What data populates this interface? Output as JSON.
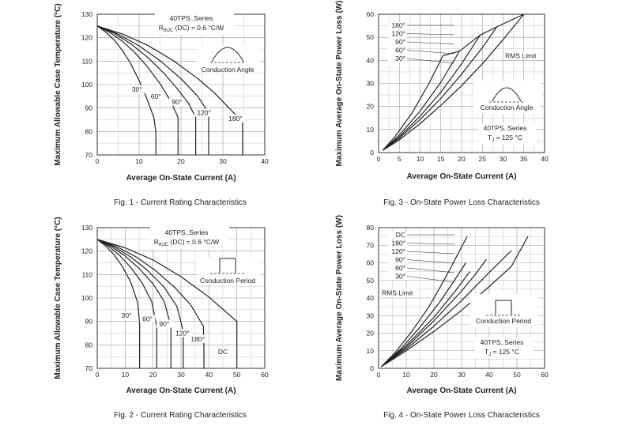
{
  "chart_data": [
    {
      "id": "fig1",
      "type": "line",
      "caption": "Fig. 1 - Current Rating Characteristics",
      "xlabel": "Average On-State Current (A)",
      "ylabel": "Maximum Allowable Case Temperature (°C)",
      "xlim": [
        0,
        40
      ],
      "ylim": [
        70,
        130
      ],
      "xticks": [
        0,
        10,
        20,
        30,
        40
      ],
      "yticks": [
        70,
        80,
        90,
        100,
        110,
        120,
        130
      ],
      "grid": true,
      "notes": [
        "40TPS..Series",
        "R",
        "thJC",
        " (DC) = 0.6 °C/W",
        "Conduction Angle"
      ],
      "series": [
        {
          "name": "30°",
          "x": [
            0,
            2,
            4,
            6,
            8,
            10,
            12,
            13.5,
            14,
            14,
            14
          ],
          "y": [
            125,
            122.4,
            119.1,
            114.6,
            108.9,
            101.8,
            93.3,
            86,
            80,
            75,
            70
          ]
        },
        {
          "name": "60°",
          "x": [
            0,
            3,
            6,
            9,
            12,
            15,
            17.5,
            19.3,
            19.3,
            19.3
          ],
          "y": [
            125,
            122.2,
            118.5,
            113.6,
            107.6,
            100.4,
            93,
            86,
            78,
            70
          ]
        },
        {
          "name": "90°",
          "x": [
            0,
            4,
            8,
            12,
            16,
            19,
            21.8,
            23.5,
            23.5,
            23.5
          ],
          "y": [
            125,
            121.9,
            117.4,
            111.7,
            104.7,
            98.5,
            92,
            86,
            78,
            70
          ]
        },
        {
          "name": "120°",
          "x": [
            0,
            5,
            10,
            15,
            20,
            24,
            26.6,
            26.6,
            26.6
          ],
          "y": [
            125,
            121.5,
            116.5,
            110.2,
            102.5,
            95,
            88,
            78,
            70
          ]
        },
        {
          "name": "180°",
          "x": [
            0,
            6,
            12,
            18,
            24,
            28,
            31.5,
            34.7,
            34.7,
            34.7
          ],
          "y": [
            125,
            121.6,
            116.8,
            110.4,
            102.6,
            96.4,
            90,
            84,
            77,
            70
          ]
        }
      ],
      "curve_labels": [
        {
          "text": "30°",
          "x": 9.5,
          "y": 97
        },
        {
          "text": "60°",
          "x": 14,
          "y": 94
        },
        {
          "text": "90°",
          "x": 19,
          "y": 91.5
        },
        {
          "text": "120°",
          "x": 25.5,
          "y": 87
        },
        {
          "text": "180°",
          "x": 33,
          "y": 84.5
        }
      ]
    },
    {
      "id": "fig2",
      "type": "line",
      "caption": "Fig. 2 - Current Rating Characteristics",
      "xlabel": "Average On-State Current (A)",
      "ylabel": "Maximum Allowable Case Temperature (°C)",
      "xlim": [
        0,
        60
      ],
      "ylim": [
        70,
        130
      ],
      "xticks": [
        0,
        10,
        20,
        30,
        40,
        50,
        60
      ],
      "yticks": [
        70,
        80,
        90,
        100,
        110,
        120,
        130
      ],
      "grid": true,
      "notes": [
        "40TPS..Series",
        "R",
        "thJC",
        " (DC) = 0.6 °C/W",
        "Conduction Period"
      ],
      "series": [
        {
          "name": "30°",
          "x": [
            0,
            3,
            6,
            9,
            12,
            14.5,
            15.2,
            15.2,
            15.2
          ],
          "y": [
            125,
            122.2,
            118.5,
            113.4,
            106.8,
            98,
            89,
            80,
            70
          ]
        },
        {
          "name": "60°",
          "x": [
            0,
            4,
            8,
            12,
            16,
            19.5,
            21.3,
            21.3,
            21.3
          ],
          "y": [
            125,
            122.1,
            118.2,
            113,
            106.6,
            98.5,
            88,
            80,
            70
          ]
        },
        {
          "name": "90°",
          "x": [
            0,
            5,
            10,
            15,
            20,
            24,
            26.4,
            26.4
          ],
          "y": [
            125,
            122,
            117.9,
            112.6,
            106,
            98.5,
            88,
            70
          ]
        },
        {
          "name": "120°",
          "x": [
            0,
            6,
            12,
            18,
            24,
            28.5,
            30.8,
            30.8
          ],
          "y": [
            125,
            121.9,
            117.5,
            111.8,
            104.6,
            96.5,
            86,
            70
          ]
        },
        {
          "name": "180°",
          "x": [
            0,
            7,
            14,
            21,
            28,
            33.5,
            38,
            38.2,
            38.2
          ],
          "y": [
            125,
            121.9,
            117.5,
            111.6,
            104.2,
            97,
            88,
            79,
            70
          ]
        },
        {
          "name": "DC",
          "x": [
            0,
            10,
            20,
            30,
            40,
            50,
            50,
            50
          ],
          "y": [
            125,
            121.4,
            116.2,
            109.1,
            100.4,
            90,
            80,
            70
          ]
        }
      ],
      "curve_labels": [
        {
          "text": "30°",
          "x": 10.5,
          "y": 91.5
        },
        {
          "text": "60°",
          "x": 18,
          "y": 90
        },
        {
          "text": "90°",
          "x": 24,
          "y": 88
        },
        {
          "text": "120°",
          "x": 30.5,
          "y": 84
        },
        {
          "text": "180°",
          "x": 36,
          "y": 81.5
        },
        {
          "text": "DC",
          "x": 45,
          "y": 76
        }
      ]
    },
    {
      "id": "fig3",
      "type": "line",
      "caption": "Fig. 3 - On-State Power Loss Characteristics",
      "xlabel": "Average On-State Current (A)",
      "ylabel": "Maximum Average On-State Power Loss (W)",
      "xlim": [
        0,
        40
      ],
      "ylim": [
        0,
        60
      ],
      "xticks": [
        0,
        5,
        10,
        15,
        20,
        25,
        30,
        35,
        40
      ],
      "yticks": [
        0,
        10,
        20,
        30,
        40,
        50,
        60
      ],
      "grid": true,
      "legend_labels": [
        "180°",
        "120°",
        "90°",
        "60°",
        "30°"
      ],
      "notes": [
        "RMS Limit",
        "Conduction Angle",
        "40TPS..Series",
        "T",
        "J",
        " = 125 °C"
      ],
      "series": [
        {
          "name": "180°",
          "x": [
            1,
            5,
            10,
            15,
            20,
            25,
            30,
            35
          ],
          "y": [
            1,
            5.5,
            12.5,
            20.5,
            29,
            38.5,
            49,
            60
          ]
        },
        {
          "name": "120°",
          "x": [
            1,
            5,
            10,
            15,
            20,
            25,
            28.5
          ],
          "y": [
            1,
            6.2,
            14.3,
            23.5,
            34,
            45.5,
            54.5
          ]
        },
        {
          "name": "90°",
          "x": [
            1,
            5,
            10,
            15,
            20,
            24.5
          ],
          "y": [
            1,
            6.8,
            15.8,
            26.2,
            38.5,
            51
          ]
        },
        {
          "name": "60°",
          "x": [
            1,
            5,
            10,
            15,
            19.5
          ],
          "y": [
            1,
            7.6,
            18,
            30.5,
            44
          ]
        },
        {
          "name": "30°",
          "x": [
            1,
            4,
            8,
            12,
            15.5
          ],
          "y": [
            1,
            7,
            17,
            29.5,
            42
          ]
        },
        {
          "name": "RMS Limit",
          "x": [
            15.5,
            19.5,
            24.5,
            28.5,
            35
          ],
          "y": [
            42,
            44,
            51,
            54.5,
            60
          ]
        }
      ]
    },
    {
      "id": "fig4",
      "type": "line",
      "caption": "Fig. 4 - On-State Power Loss Characteristics",
      "xlabel": "Average On-State Current (A)",
      "ylabel": "Maximum Average On-State Power Loss (W)",
      "xlim": [
        0,
        60
      ],
      "ylim": [
        0,
        80
      ],
      "xticks": [
        0,
        10,
        20,
        30,
        40,
        50,
        60
      ],
      "yticks": [
        0,
        10,
        20,
        30,
        40,
        50,
        60,
        70,
        80
      ],
      "grid": true,
      "legend_labels": [
        "DC",
        "180°",
        "120°",
        "90°",
        "60°",
        "30°",
        "RMS Limit"
      ],
      "notes": [
        "Conduction Period",
        "40TPS..Series",
        "T",
        "J",
        " = 125 °C"
      ],
      "series": [
        {
          "name": "DC",
          "x": [
            1,
            10,
            20,
            30,
            40,
            48,
            54
          ],
          "y": [
            1,
            10,
            21,
            33,
            46.5,
            58,
            75
          ]
        },
        {
          "name": "180°",
          "x": [
            1,
            10,
            20,
            30,
            40,
            48
          ],
          "y": [
            1,
            11,
            24,
            38.5,
            54.5,
            67
          ]
        },
        {
          "name": "120°",
          "x": [
            1,
            10,
            20,
            30,
            35,
            39
          ],
          "y": [
            1,
            12,
            27,
            44,
            53.5,
            62
          ]
        },
        {
          "name": "90°",
          "x": [
            1,
            10,
            20,
            28,
            32,
            33
          ],
          "y": [
            1,
            13,
            29,
            44.5,
            53,
            55
          ]
        },
        {
          "name": "60°",
          "x": [
            1,
            8,
            15,
            22,
            27,
            31.5
          ],
          "y": [
            1,
            11,
            23.5,
            37.5,
            49,
            60
          ]
        },
        {
          "name": "30°",
          "x": [
            1,
            6,
            12,
            18,
            22,
            25,
            28,
            32
          ],
          "y": [
            1,
            9,
            21,
            34.5,
            45.5,
            54,
            63,
            75
          ]
        }
      ]
    }
  ]
}
